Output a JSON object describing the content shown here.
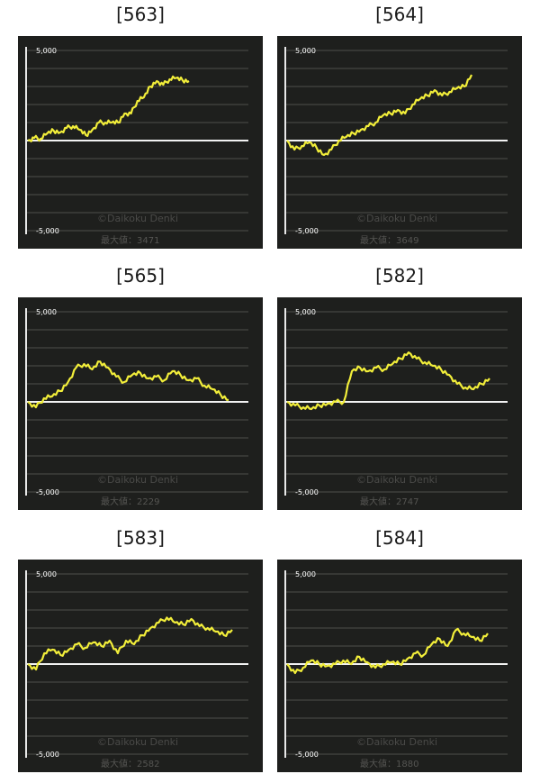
{
  "chart_data": [
    {
      "type": "line",
      "title": "[563]",
      "yticks": [
        "5,000",
        "-5,000"
      ],
      "ylim": [
        -5000,
        5000
      ],
      "watermark": "©Daikoku Denki",
      "max_label": "最大値：3471",
      "line_color": "#f2ee3a",
      "x": [
        0,
        4,
        8,
        12,
        16,
        20,
        24,
        28,
        32,
        36,
        40,
        44,
        48,
        52,
        56,
        60,
        64,
        68,
        72,
        76,
        80,
        84,
        88,
        92,
        96,
        100
      ],
      "y": [
        0,
        150,
        100,
        400,
        550,
        450,
        700,
        800,
        600,
        300,
        600,
        1000,
        1000,
        1000,
        1000,
        1500,
        1500,
        2200,
        2400,
        3000,
        3300,
        3100,
        3400,
        3471,
        3350,
        3300
      ]
    },
    {
      "type": "line",
      "title": "[564]",
      "yticks": [
        "5,000",
        "-5,000"
      ],
      "ylim": [
        -5000,
        5000
      ],
      "watermark": "©Daikoku Denki",
      "max_label": "最大値：3649",
      "line_color": "#f2ee3a",
      "x": [
        0,
        4,
        8,
        12,
        16,
        20,
        24,
        28,
        32,
        36,
        40,
        44,
        48,
        52,
        56,
        60,
        64,
        68,
        72,
        76,
        80,
        84,
        88,
        92,
        96,
        100
      ],
      "y": [
        0,
        -500,
        -300,
        -100,
        -400,
        -800,
        -500,
        0,
        200,
        400,
        600,
        800,
        1000,
        1400,
        1500,
        1700,
        1500,
        2000,
        2300,
        2500,
        2800,
        2500,
        2700,
        2900,
        3000,
        3649
      ]
    },
    {
      "type": "line",
      "title": "[565]",
      "yticks": [
        "5,000",
        "-5,000"
      ],
      "ylim": [
        -5000,
        5000
      ],
      "watermark": "©Daikoku Denki",
      "max_label": "最大値：2229",
      "line_color": "#f2ee3a",
      "x": [
        0,
        4,
        8,
        12,
        16,
        20,
        24,
        28,
        32,
        36,
        40,
        44,
        48,
        52,
        56,
        60,
        64,
        68,
        72,
        76,
        80,
        84,
        88,
        92,
        96,
        100
      ],
      "y": [
        0,
        -300,
        200,
        300,
        600,
        1100,
        1900,
        2100,
        1800,
        2229,
        1900,
        1400,
        1100,
        1500,
        1600,
        1300,
        1400,
        1200,
        1700,
        1500,
        1200,
        1300,
        900,
        700,
        400,
        100
      ]
    },
    {
      "type": "line",
      "title": "[582]",
      "yticks": [
        "5,000",
        "-5,000"
      ],
      "ylim": [
        -5000,
        5000
      ],
      "watermark": "©Daikoku Denki",
      "max_label": "最大値：2747",
      "line_color": "#f2ee3a",
      "x": [
        0,
        4,
        8,
        12,
        16,
        20,
        24,
        28,
        32,
        36,
        40,
        44,
        48,
        52,
        56,
        60,
        64,
        68,
        72,
        76,
        80,
        84,
        88,
        92,
        96,
        100
      ],
      "y": [
        0,
        -200,
        -300,
        -400,
        -200,
        -100,
        0,
        0,
        1700,
        1900,
        1700,
        1900,
        1800,
        2100,
        2400,
        2747,
        2400,
        2200,
        2000,
        1800,
        1500,
        1000,
        800,
        700,
        1000,
        1300
      ]
    },
    {
      "type": "line",
      "title": "[583]",
      "yticks": [
        "5,000",
        "-5,000"
      ],
      "ylim": [
        -5000,
        5000
      ],
      "watermark": "©Daikoku Denki",
      "max_label": "最大値：2582",
      "line_color": "#f2ee3a",
      "x": [
        0,
        4,
        8,
        12,
        16,
        20,
        24,
        28,
        32,
        36,
        40,
        44,
        48,
        52,
        56,
        60,
        64,
        68,
        72,
        76,
        80,
        84,
        88,
        92,
        96,
        100
      ],
      "y": [
        0,
        -300,
        600,
        800,
        500,
        800,
        1100,
        900,
        1200,
        1000,
        1300,
        600,
        1300,
        1100,
        1600,
        2000,
        2300,
        2582,
        2300,
        2200,
        2500,
        2100,
        2000,
        1800,
        1600,
        1900
      ]
    },
    {
      "type": "line",
      "title": "[584]",
      "yticks": [
        "5,000",
        "-5,000"
      ],
      "ylim": [
        -5000,
        5000
      ],
      "watermark": "©Daikoku Denki",
      "max_label": "最大値：1880",
      "line_color": "#f2ee3a",
      "x": [
        0,
        4,
        8,
        12,
        16,
        20,
        24,
        28,
        32,
        36,
        40,
        44,
        48,
        52,
        56,
        60,
        64,
        68,
        72,
        76,
        80,
        84,
        88,
        92,
        96,
        100
      ],
      "y": [
        0,
        -500,
        -200,
        200,
        0,
        -100,
        0,
        200,
        0,
        400,
        100,
        -200,
        0,
        100,
        0,
        300,
        600,
        500,
        1100,
        1400,
        1000,
        1880,
        1700,
        1500,
        1300,
        1700
      ]
    }
  ]
}
